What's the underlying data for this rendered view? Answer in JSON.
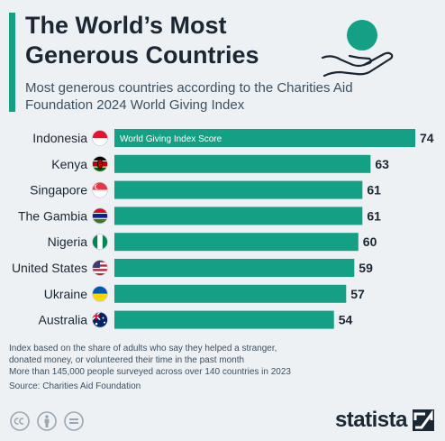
{
  "header": {
    "title": "The World’s Most Generous Countries",
    "subtitle": "Most generous countries according to the Charities Aid Foundation 2024 World Giving Index"
  },
  "chart_data": {
    "type": "bar",
    "orientation": "horizontal",
    "categories": [
      "Indonesia",
      "Kenya",
      "Singapore",
      "The Gambia",
      "Nigeria",
      "United States",
      "Ukraine",
      "Australia"
    ],
    "values": [
      74,
      63,
      61,
      61,
      60,
      59,
      57,
      54
    ],
    "series": [
      {
        "name": "World Giving Index Score",
        "values": [
          74,
          63,
          61,
          61,
          60,
          59,
          57,
          54
        ]
      }
    ],
    "flags": [
      "indonesia-flag-icon",
      "kenya-flag-icon",
      "singapore-flag-icon",
      "gambia-flag-icon",
      "nigeria-flag-icon",
      "united-states-flag-icon",
      "ukraine-flag-icon",
      "australia-flag-icon"
    ],
    "bar_color": "#14a085",
    "xlim": [
      0,
      74
    ],
    "grid": false,
    "legend": "inside-first-bar"
  },
  "notes": {
    "line1": "Index based on the share of adults who say they helped a stranger,",
    "line2": "donated money, or volunteered their time in the past month",
    "line3": "More than 145,000 people surveyed across over 140 countries in 2023",
    "source": "Source: Charities Aid Foundation"
  },
  "footer": {
    "brand": "statista",
    "license_icons": [
      "cc-icon",
      "attribution-icon",
      "no-derivatives-icon"
    ]
  },
  "colors": {
    "accent": "#14a085",
    "text": "#1b2733",
    "background": "#eef1f4"
  }
}
